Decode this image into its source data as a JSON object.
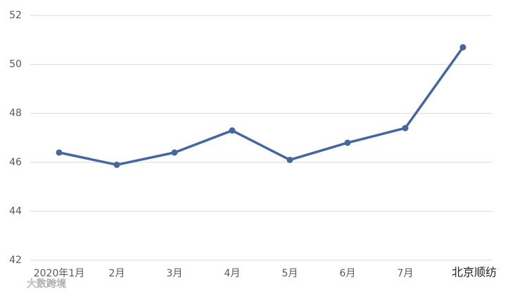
{
  "chart_data": {
    "type": "line",
    "categories": [
      "2020年1月",
      "2月",
      "3月",
      "4月",
      "5月",
      "6月",
      "7月",
      null
    ],
    "series": [
      {
        "name": null,
        "color": "#44689e",
        "values": [
          46.4,
          45.9,
          46.4,
          47.3,
          46.1,
          46.8,
          47.4,
          50.7
        ]
      }
    ],
    "ylim": [
      42,
      52
    ],
    "yticks": [
      42,
      44,
      46,
      48,
      50,
      52
    ],
    "grid": true,
    "watermarks": [
      "北京顺纺",
      "大数跨境"
    ]
  }
}
